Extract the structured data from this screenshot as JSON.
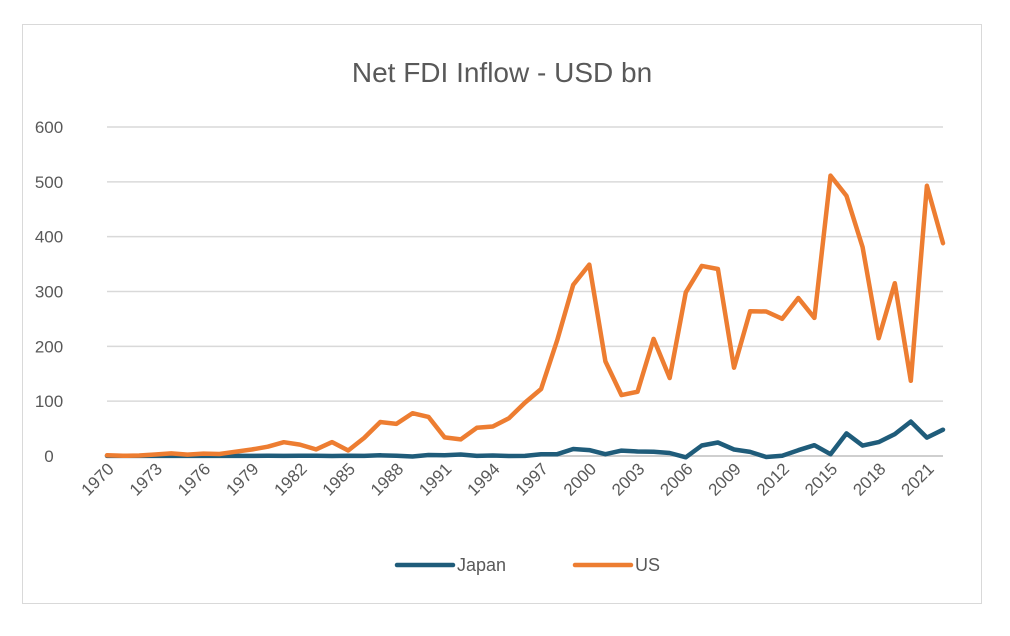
{
  "chart_data": {
    "type": "line",
    "title": "Net FDI Inflow - USD bn",
    "xlabel": "",
    "ylabel": "",
    "ylim": [
      0,
      600
    ],
    "yticks": [
      0,
      100,
      200,
      300,
      400,
      500,
      600
    ],
    "grid": true,
    "legend_position": "bottom",
    "x": [
      1970,
      1971,
      1972,
      1973,
      1974,
      1975,
      1976,
      1977,
      1978,
      1979,
      1980,
      1981,
      1982,
      1983,
      1984,
      1985,
      1986,
      1987,
      1988,
      1989,
      1990,
      1991,
      1992,
      1993,
      1994,
      1995,
      1996,
      1997,
      1998,
      1999,
      2000,
      2001,
      2002,
      2003,
      2004,
      2005,
      2006,
      2007,
      2008,
      2009,
      2010,
      2011,
      2012,
      2013,
      2014,
      2015,
      2016,
      2017,
      2018,
      2019,
      2020,
      2021,
      2022
    ],
    "xtick_labels": [
      "1970",
      "1973",
      "1976",
      "1979",
      "1982",
      "1985",
      "1988",
      "1991",
      "1994",
      "1997",
      "2000",
      "2003",
      "2006",
      "2009",
      "2012",
      "2015",
      "2018",
      "2021"
    ],
    "series": [
      {
        "name": "Japan",
        "color": "#1f5c7a",
        "values": [
          0.1,
          0.1,
          0.1,
          0.1,
          0.2,
          0.2,
          0.1,
          0.1,
          0.1,
          0.2,
          0.3,
          0.2,
          0.4,
          0.4,
          0.0,
          0.6,
          0.2,
          1.2,
          0.5,
          -1.0,
          1.8,
          1.3,
          2.8,
          0.1,
          0.9,
          0.0,
          0.2,
          3.2,
          3.3,
          12.7,
          10.7,
          3.2,
          9.8,
          8.2,
          7.8,
          5.5,
          -2.3,
          19.1,
          24.6,
          11.9,
          7.4,
          -1.8,
          0.5,
          10.6,
          19.7,
          3.3,
          41.3,
          18.9,
          25.3,
          39.9,
          62.7,
          33.6,
          48.0
        ]
      },
      {
        "name": "US",
        "color": "#ed7d31",
        "values": [
          1.3,
          0.4,
          0.9,
          2.8,
          4.8,
          2.6,
          4.3,
          3.7,
          7.9,
          11.9,
          16.9,
          25.2,
          20.7,
          12.0,
          25.4,
          10.0,
          33.0,
          62.0,
          58.6,
          78.0,
          71.3,
          34.0,
          30.3,
          51.4,
          53.8,
          68.7,
          97.4,
          122.2,
          211.2,
          312.0,
          349.1,
          172.5,
          111.1,
          117.1,
          213.6,
          142.3,
          298.5,
          346.6,
          341.1,
          161.1,
          264.0,
          263.5,
          250.3,
          288.1,
          251.9,
          511.4,
          474.4,
          380.8,
          214.7,
          315.2,
          137.1,
          492.7,
          388.1
        ]
      }
    ]
  }
}
